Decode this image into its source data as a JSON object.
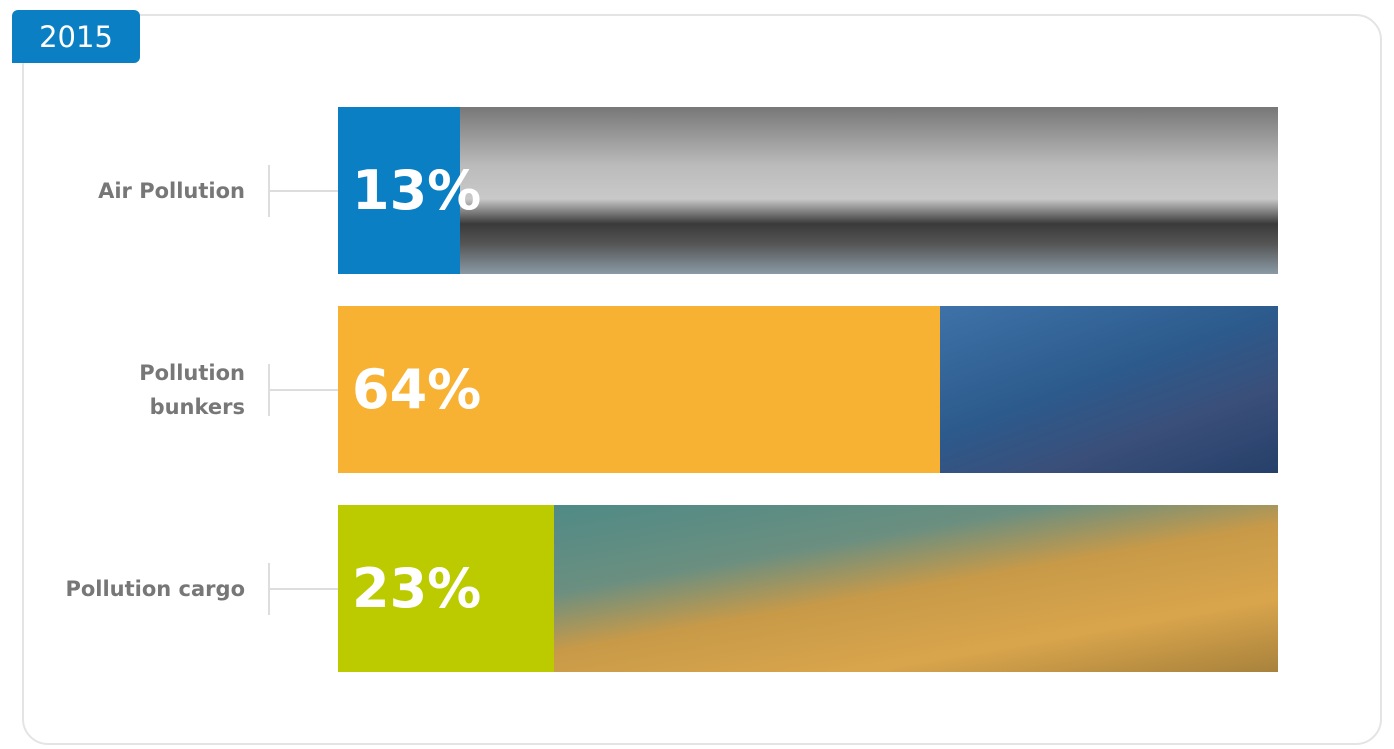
{
  "chart_data": {
    "type": "bar",
    "title": "2015",
    "categories": [
      "Air Pollution",
      "Pollution bunkers",
      "Pollution cargo"
    ],
    "values": [
      13,
      64,
      23
    ],
    "value_labels": [
      "13%",
      "64%",
      "23%"
    ],
    "colors": [
      "#0a7fc4",
      "#f7b234",
      "#bccb00"
    ],
    "xlim": [
      0,
      100
    ]
  }
}
